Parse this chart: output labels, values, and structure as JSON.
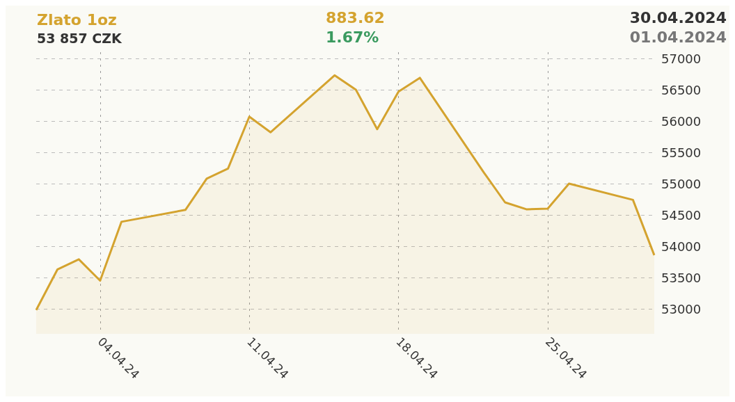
{
  "chart_data": {
    "type": "area",
    "title": "Zlato 1oz",
    "subtitle": "53 857 CZK",
    "annotations": [
      "883.62",
      "1.67%",
      "30.04.2024",
      "01.04.2024"
    ],
    "x": [
      "2024-04-01",
      "2024-04-02",
      "2024-04-03",
      "2024-04-04",
      "2024-04-05",
      "2024-04-08",
      "2024-04-09",
      "2024-04-10",
      "2024-04-11",
      "2024-04-12",
      "2024-04-15",
      "2024-04-16",
      "2024-04-17",
      "2024-04-18",
      "2024-04-19",
      "2024-04-22",
      "2024-04-23",
      "2024-04-24",
      "2024-04-25",
      "2024-04-26",
      "2024-04-29",
      "2024-04-30"
    ],
    "series": [
      {
        "color": "#d4a32f",
        "values": [
          52980,
          53630,
          53790,
          53450,
          54390,
          54580,
          55080,
          55240,
          56070,
          55820,
          56730,
          56500,
          55870,
          56470,
          56690,
          55180,
          54700,
          54590,
          54600,
          55000,
          54740,
          53857
        ]
      }
    ],
    "xlim": [
      "2024-04-01",
      "2024-04-30"
    ],
    "xticks": [
      {
        "value": "2024-04-04",
        "label": "04.04.24"
      },
      {
        "value": "2024-04-11",
        "label": "11.04.24"
      },
      {
        "value": "2024-04-18",
        "label": "18.04.24"
      },
      {
        "value": "2024-04-25",
        "label": "25.04.24"
      }
    ],
    "ylim": [
      52600,
      57100
    ],
    "yticks": [
      53000,
      53500,
      54000,
      54500,
      55000,
      55500,
      56000,
      56500,
      57000
    ],
    "grid": true,
    "marker": "none",
    "line_style": "solid"
  }
}
